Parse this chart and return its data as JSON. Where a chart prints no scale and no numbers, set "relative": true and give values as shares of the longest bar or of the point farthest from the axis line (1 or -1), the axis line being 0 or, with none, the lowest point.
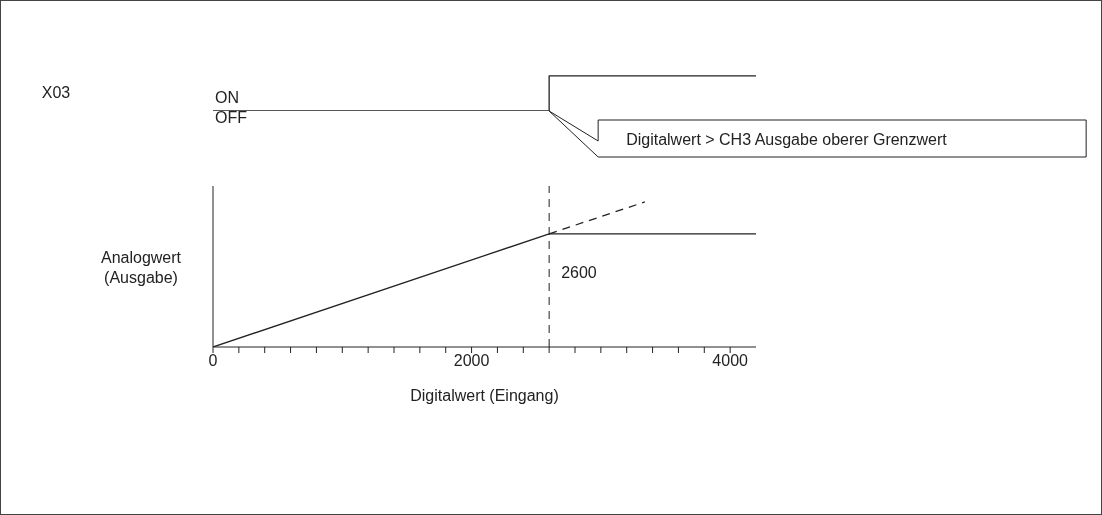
{
  "chart_data": [
    {
      "type": "step",
      "relative": true,
      "ylabel": "X03",
      "tick_labels": false,
      "categories": [
        null,
        null,
        null,
        null,
        null,
        null,
        null,
        null,
        null,
        null,
        null,
        null,
        null,
        null,
        null,
        null,
        null,
        null,
        null,
        null,
        null,
        null
      ],
      "series": [
        {
          "values": [
            0,
            0,
            0,
            0,
            0,
            0,
            0,
            0,
            0,
            0,
            0,
            0,
            0,
            1,
            1,
            1,
            1,
            1,
            1,
            1,
            1,
            1
          ],
          "color": "#222222"
        }
      ],
      "annotations": [
        "ON",
        "OFF",
        "Digitalwert > CH3 Ausgabe oberer Grenzwert"
      ]
    },
    {
      "type": "line",
      "relative": true,
      "xlabel": "Digitalwert (Eingang)",
      "ylabel": "Analogwert (Ausgabe)",
      "xlim": [
        0,
        4200
      ],
      "xticks": [
        0,
        {
          "value": 200,
          "label": null
        },
        {
          "value": 400,
          "label": null
        },
        {
          "value": 600,
          "label": null
        },
        {
          "value": 800,
          "label": null
        },
        {
          "value": 1000,
          "label": null
        },
        {
          "value": 1200,
          "label": null
        },
        {
          "value": 1400,
          "label": null
        },
        {
          "value": 1600,
          "label": null
        },
        {
          "value": 1800,
          "label": null
        },
        2000,
        {
          "value": 2200,
          "label": null
        },
        {
          "value": 2400,
          "label": null
        },
        {
          "value": 2600,
          "label": null
        },
        {
          "value": 2800,
          "label": null
        },
        {
          "value": 3000,
          "label": null
        },
        {
          "value": 3200,
          "label": null
        },
        {
          "value": 3400,
          "label": null
        },
        {
          "value": 3600,
          "label": null
        },
        {
          "value": 3800,
          "label": null
        },
        4000
      ],
      "series": [
        {
          "x": [
            0,
            2600,
            4200
          ],
          "values": [
            0,
            0.78,
            0.78
          ],
          "color": "#222222",
          "line_style": "solid"
        },
        {
          "x": [
            2600,
            3340
          ],
          "values": [
            0.78,
            1.0
          ],
          "color": "#222222",
          "line_style": "dashed"
        }
      ],
      "ref_lines": [
        {
          "axis": "x",
          "value": 2600,
          "label": "2600",
          "line_style": "dashed",
          "color": "#222222"
        }
      ]
    }
  ]
}
